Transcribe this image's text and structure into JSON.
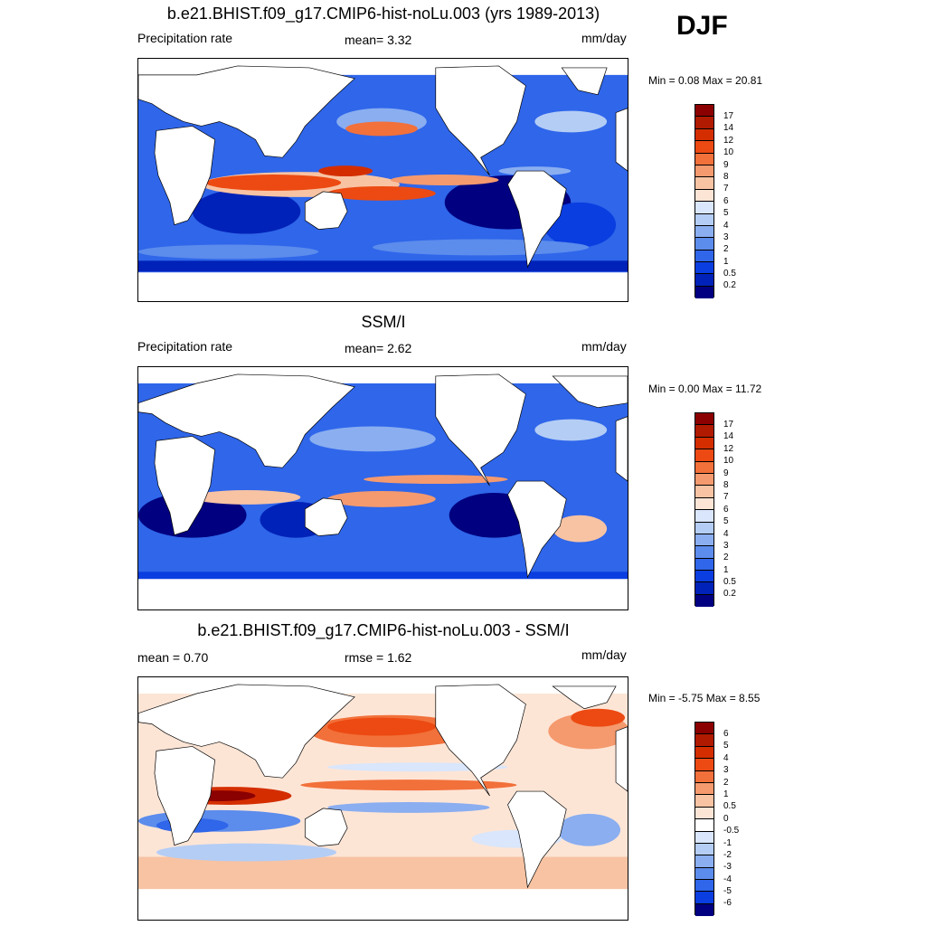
{
  "season": "DJF",
  "panels": [
    {
      "title": "b.e21.BHIST.f09_g17.CMIP6-hist-noLu.003 (yrs 1989-2013)",
      "left_label": "Precipitation rate",
      "center_label": "mean=   3.32",
      "units": "mm/day",
      "minmax": "Min =   0.08 Max =  20.81",
      "colorbar_labels": [
        "17",
        "14",
        "12",
        "10",
        "9",
        "8",
        "7",
        "6",
        "5",
        "4",
        "3",
        "2",
        "1",
        "0.5",
        "0.2"
      ]
    },
    {
      "title": "SSM/I",
      "left_label": "Precipitation rate",
      "center_label": "mean=   2.62",
      "units": "mm/day",
      "minmax": "Min =   0.00 Max =  11.72",
      "colorbar_labels": [
        "17",
        "14",
        "12",
        "10",
        "9",
        "8",
        "7",
        "6",
        "5",
        "4",
        "3",
        "2",
        "1",
        "0.5",
        "0.2"
      ]
    },
    {
      "title": "b.e21.BHIST.f09_g17.CMIP6-hist-noLu.003 - SSM/I",
      "left_label": "mean =   0.70",
      "center_label": "rmse =   1.62",
      "units": "mm/day",
      "minmax": "Min =  -5.75 Max =   8.55",
      "colorbar_labels": [
        "6",
        "5",
        "4",
        "3",
        "2",
        "1",
        "0.5",
        "0",
        "-0.5",
        "-1",
        "-2",
        "-3",
        "-4",
        "-5",
        "-6"
      ]
    }
  ],
  "colors": {
    "precip_scale": [
      "#8b0000",
      "#b01a00",
      "#d42e00",
      "#ec4a12",
      "#f2703a",
      "#f59a6e",
      "#f8c3a3",
      "#fde5d6",
      "#d9e6fb",
      "#b4cdf5",
      "#8aaef0",
      "#5c8cec",
      "#2f66ea",
      "#0a3ee0",
      "#0022b8",
      "#000080"
    ],
    "diff_scale": [
      "#8b0000",
      "#b01a00",
      "#d42e00",
      "#ec4a12",
      "#f2703a",
      "#f59a6e",
      "#f8c3a3",
      "#fde5d6",
      "#ffffff",
      "#d9e6fb",
      "#b4cdf5",
      "#8aaef0",
      "#5c8cec",
      "#2f66ea",
      "#0a3ee0",
      "#000080"
    ]
  }
}
